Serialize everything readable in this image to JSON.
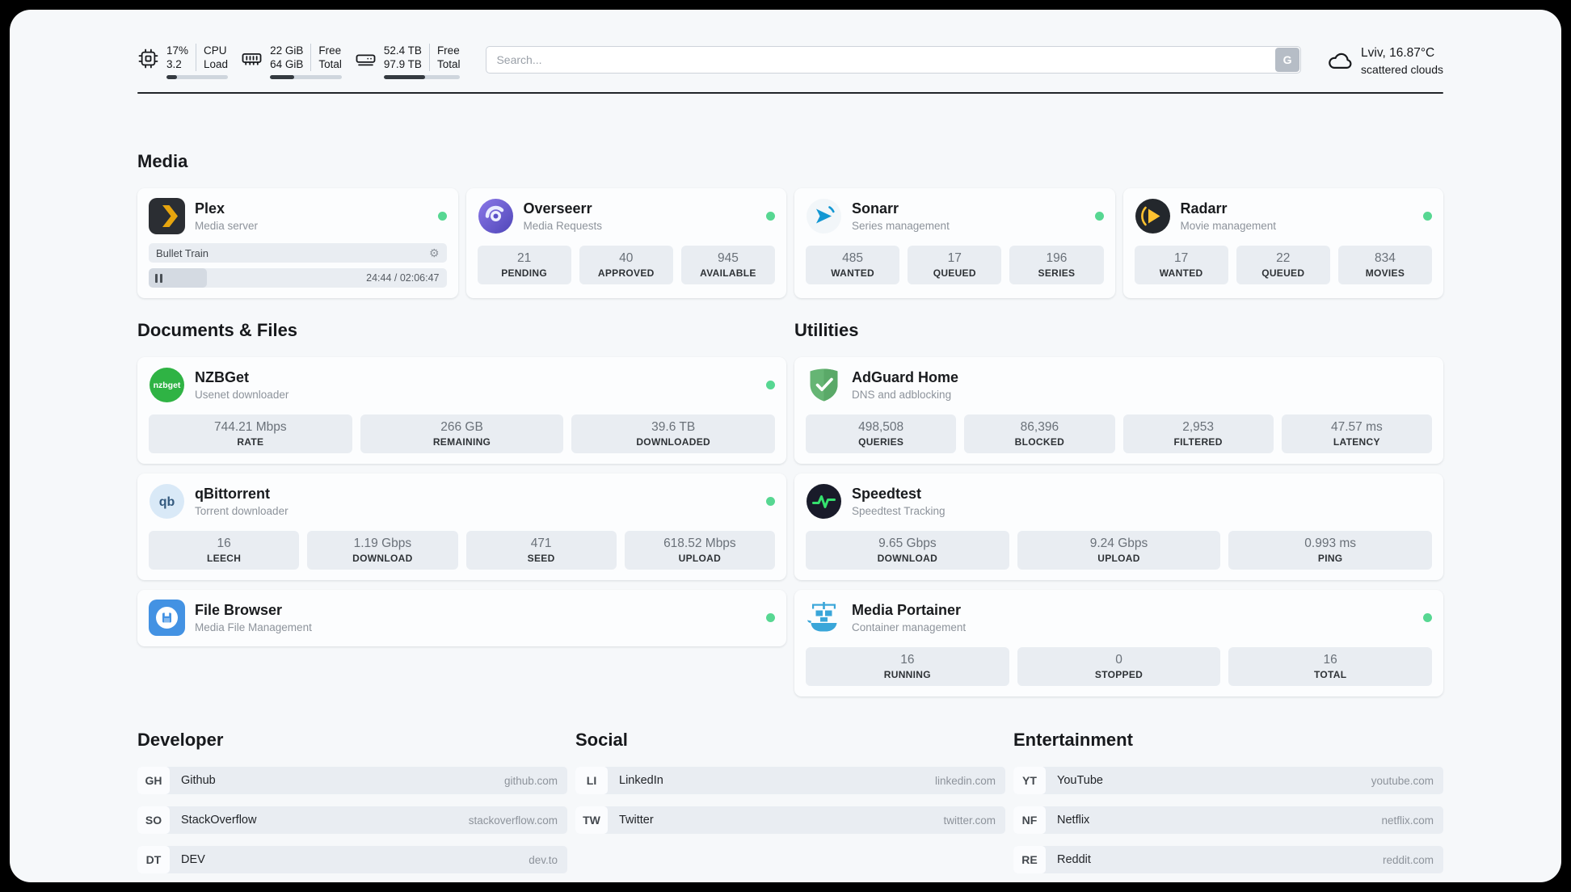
{
  "theme": {
    "status_green": "#57d792",
    "divider": "#212529",
    "accent_bar": "#343a40"
  },
  "icons": {
    "gear": "⚙"
  },
  "header": {
    "cpu": {
      "percent": "17%",
      "value": "3.2",
      "label_top": "CPU",
      "label_bottom": "Load",
      "bar_percent": 17
    },
    "ram": {
      "free": "22 GiB",
      "total": "64 GiB",
      "label_top": "Free",
      "label_bottom": "Total",
      "bar_percent": 34
    },
    "disk": {
      "free": "52.4 TB",
      "total": "97.9 TB",
      "label_top": "Free",
      "label_bottom": "Total",
      "bar_percent": 54
    },
    "search": {
      "placeholder": "Search...",
      "button": "G"
    },
    "weather": {
      "location": "Lviv, 16.87°C",
      "condition": "scattered clouds"
    }
  },
  "media": {
    "title": "Media",
    "plex": {
      "name": "Plex",
      "subtitle": "Media server",
      "now_playing": "Bullet Train",
      "time": "24:44 / 02:06:47",
      "progress_percent": 19.5
    },
    "overseerr": {
      "name": "Overseerr",
      "subtitle": "Media Requests",
      "stats": [
        {
          "value": "21",
          "label": "PENDING"
        },
        {
          "value": "40",
          "label": "APPROVED"
        },
        {
          "value": "945",
          "label": "AVAILABLE"
        }
      ]
    },
    "sonarr": {
      "name": "Sonarr",
      "subtitle": "Series management",
      "stats": [
        {
          "value": "485",
          "label": "WANTED"
        },
        {
          "value": "17",
          "label": "QUEUED"
        },
        {
          "value": "196",
          "label": "SERIES"
        }
      ]
    },
    "radarr": {
      "name": "Radarr",
      "subtitle": "Movie management",
      "stats": [
        {
          "value": "17",
          "label": "WANTED"
        },
        {
          "value": "22",
          "label": "QUEUED"
        },
        {
          "value": "834",
          "label": "MOVIES"
        }
      ]
    }
  },
  "documents": {
    "title": "Documents & Files",
    "nzbget": {
      "name": "NZBGet",
      "subtitle": "Usenet downloader",
      "stats": [
        {
          "value": "744.21 Mbps",
          "label": "RATE"
        },
        {
          "value": "266 GB",
          "label": "REMAINING"
        },
        {
          "value": "39.6 TB",
          "label": "DOWNLOADED"
        }
      ]
    },
    "qbittorrent": {
      "name": "qBittorrent",
      "subtitle": "Torrent downloader",
      "stats": [
        {
          "value": "16",
          "label": "LEECH"
        },
        {
          "value": "1.19 Gbps",
          "label": "DOWNLOAD"
        },
        {
          "value": "471",
          "label": "SEED"
        },
        {
          "value": "618.52 Mbps",
          "label": "UPLOAD"
        }
      ]
    },
    "filebrowser": {
      "name": "File Browser",
      "subtitle": "Media File Management"
    }
  },
  "utilities": {
    "title": "Utilities",
    "adguard": {
      "name": "AdGuard Home",
      "subtitle": "DNS and adblocking",
      "stats": [
        {
          "value": "498,508",
          "label": "QUERIES"
        },
        {
          "value": "86,396",
          "label": "BLOCKED"
        },
        {
          "value": "2,953",
          "label": "FILTERED"
        },
        {
          "value": "47.57 ms",
          "label": "LATENCY"
        }
      ]
    },
    "speedtest": {
      "name": "Speedtest",
      "subtitle": "Speedtest Tracking",
      "stats": [
        {
          "value": "9.65 Gbps",
          "label": "DOWNLOAD"
        },
        {
          "value": "9.24 Gbps",
          "label": "UPLOAD"
        },
        {
          "value": "0.993 ms",
          "label": "PING"
        }
      ]
    },
    "portainer": {
      "name": "Media Portainer",
      "subtitle": "Container management",
      "stats": [
        {
          "value": "16",
          "label": "RUNNING"
        },
        {
          "value": "0",
          "label": "STOPPED"
        },
        {
          "value": "16",
          "label": "TOTAL"
        }
      ]
    }
  },
  "bookmarks": {
    "developer": {
      "title": "Developer",
      "items": [
        {
          "abbr": "GH",
          "name": "Github",
          "url": "github.com"
        },
        {
          "abbr": "SO",
          "name": "StackOverflow",
          "url": "stackoverflow.com"
        },
        {
          "abbr": "DT",
          "name": "DEV",
          "url": "dev.to"
        }
      ]
    },
    "social": {
      "title": "Social",
      "items": [
        {
          "abbr": "LI",
          "name": "LinkedIn",
          "url": "linkedin.com"
        },
        {
          "abbr": "TW",
          "name": "Twitter",
          "url": "twitter.com"
        }
      ]
    },
    "entertainment": {
      "title": "Entertainment",
      "items": [
        {
          "abbr": "YT",
          "name": "YouTube",
          "url": "youtube.com"
        },
        {
          "abbr": "NF",
          "name": "Netflix",
          "url": "netflix.com"
        },
        {
          "abbr": "RE",
          "name": "Reddit",
          "url": "reddit.com"
        }
      ]
    }
  }
}
